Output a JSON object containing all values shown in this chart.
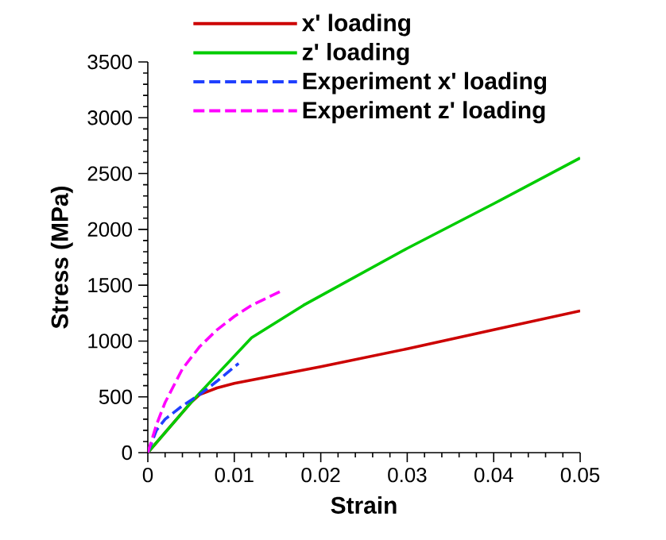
{
  "chart_data": {
    "type": "line",
    "xlabel": "Strain",
    "ylabel": "Stress (MPa)",
    "xlim": [
      0,
      0.05
    ],
    "ylim": [
      0,
      3500
    ],
    "xticks": [
      0,
      0.01,
      0.02,
      0.03,
      0.04,
      0.05
    ],
    "yticks": [
      0,
      500,
      1000,
      1500,
      2000,
      2500,
      3000,
      3500
    ],
    "grid": false,
    "legend": "top",
    "marker": "none",
    "series": [
      {
        "name": "x' loading",
        "color": "#cc0000",
        "line_style": "solid",
        "x": [
          0,
          0.005,
          0.006,
          0.008,
          0.01,
          0.02,
          0.03,
          0.04,
          0.05
        ],
        "values": [
          0,
          450,
          520,
          580,
          620,
          770,
          930,
          1100,
          1270
        ]
      },
      {
        "name": "z' loading",
        "color": "#00cc00",
        "line_style": "solid",
        "x": [
          0,
          0.005,
          0.008,
          0.012,
          0.018,
          0.03,
          0.04,
          0.05
        ],
        "values": [
          0,
          450,
          700,
          1030,
          1320,
          1830,
          2230,
          2640
        ]
      },
      {
        "name": "Experiment x' loading",
        "color": "#2040ff",
        "line_style": "dashed",
        "x": [
          0,
          0.001,
          0.002,
          0.004,
          0.006,
          0.008,
          0.0105
        ],
        "values": [
          0,
          200,
          300,
          420,
          520,
          640,
          800
        ]
      },
      {
        "name": "Experiment z' loading",
        "color": "#ff00ff",
        "line_style": "dashed",
        "x": [
          0,
          0.001,
          0.002,
          0.004,
          0.006,
          0.008,
          0.01,
          0.012,
          0.0155
        ],
        "values": [
          0,
          250,
          450,
          750,
          950,
          1100,
          1220,
          1320,
          1450
        ]
      }
    ]
  }
}
